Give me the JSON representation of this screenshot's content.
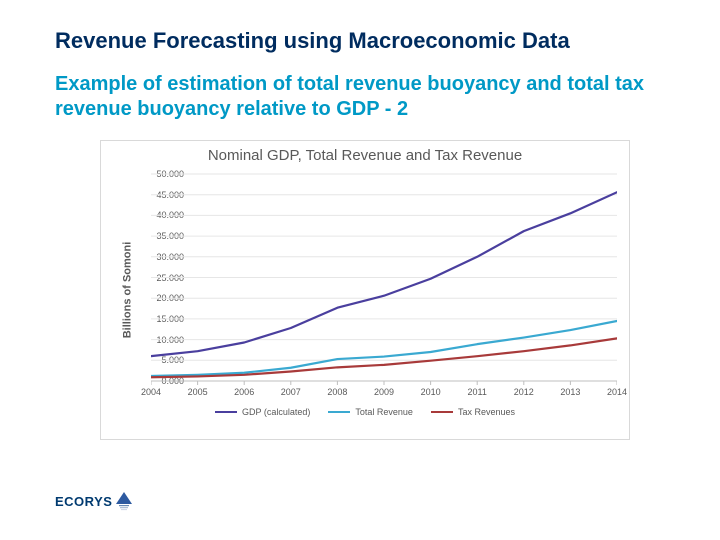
{
  "title": "Revenue Forecasting using Macroeconomic Data",
  "subtitle": "Example of estimation of total revenue buoyancy and total tax revenue buoyancy relative to GDP - 2",
  "logo": {
    "text": "ECORYS",
    "color": "#003a70",
    "triangle_color": "#2d5aa0"
  },
  "chart": {
    "type": "line",
    "title": "Nominal GDP, Total Revenue and Tax Revenue",
    "ylabel": "Billions of Somoni",
    "x_categories": [
      "2004",
      "2005",
      "2006",
      "2007",
      "2008",
      "2009",
      "2010",
      "2011",
      "2012",
      "2013",
      "2014"
    ],
    "ylim": [
      0,
      50
    ],
    "ytick_step": 5,
    "ytick_labels": [
      "0.000",
      "5.000",
      "10.000",
      "15.000",
      "20.000",
      "25.000",
      "30.000",
      "35.000",
      "40.000",
      "45.000",
      "50.000"
    ],
    "grid_color": "#e6e6e6",
    "axis_color": "#bfbfbf",
    "background_color": "#ffffff",
    "line_width": 2.2,
    "tick_fontsize": 9,
    "title_fontsize": 15,
    "title_color": "#595959",
    "series": [
      {
        "name": "GDP (calculated)",
        "color": "#4a3f9e",
        "values": [
          6.0,
          7.2,
          9.3,
          12.8,
          17.7,
          20.6,
          24.7,
          30.0,
          36.2,
          40.5,
          45.6
        ]
      },
      {
        "name": "Total Revenue",
        "color": "#3aa9d1",
        "values": [
          1.2,
          1.5,
          2.0,
          3.2,
          5.3,
          5.9,
          7.0,
          8.9,
          10.5,
          12.3,
          14.5
        ]
      },
      {
        "name": "Tax Revenues",
        "color": "#a83a3a",
        "values": [
          0.9,
          1.1,
          1.5,
          2.3,
          3.3,
          3.9,
          4.9,
          6.0,
          7.2,
          8.6,
          10.3
        ]
      }
    ]
  }
}
